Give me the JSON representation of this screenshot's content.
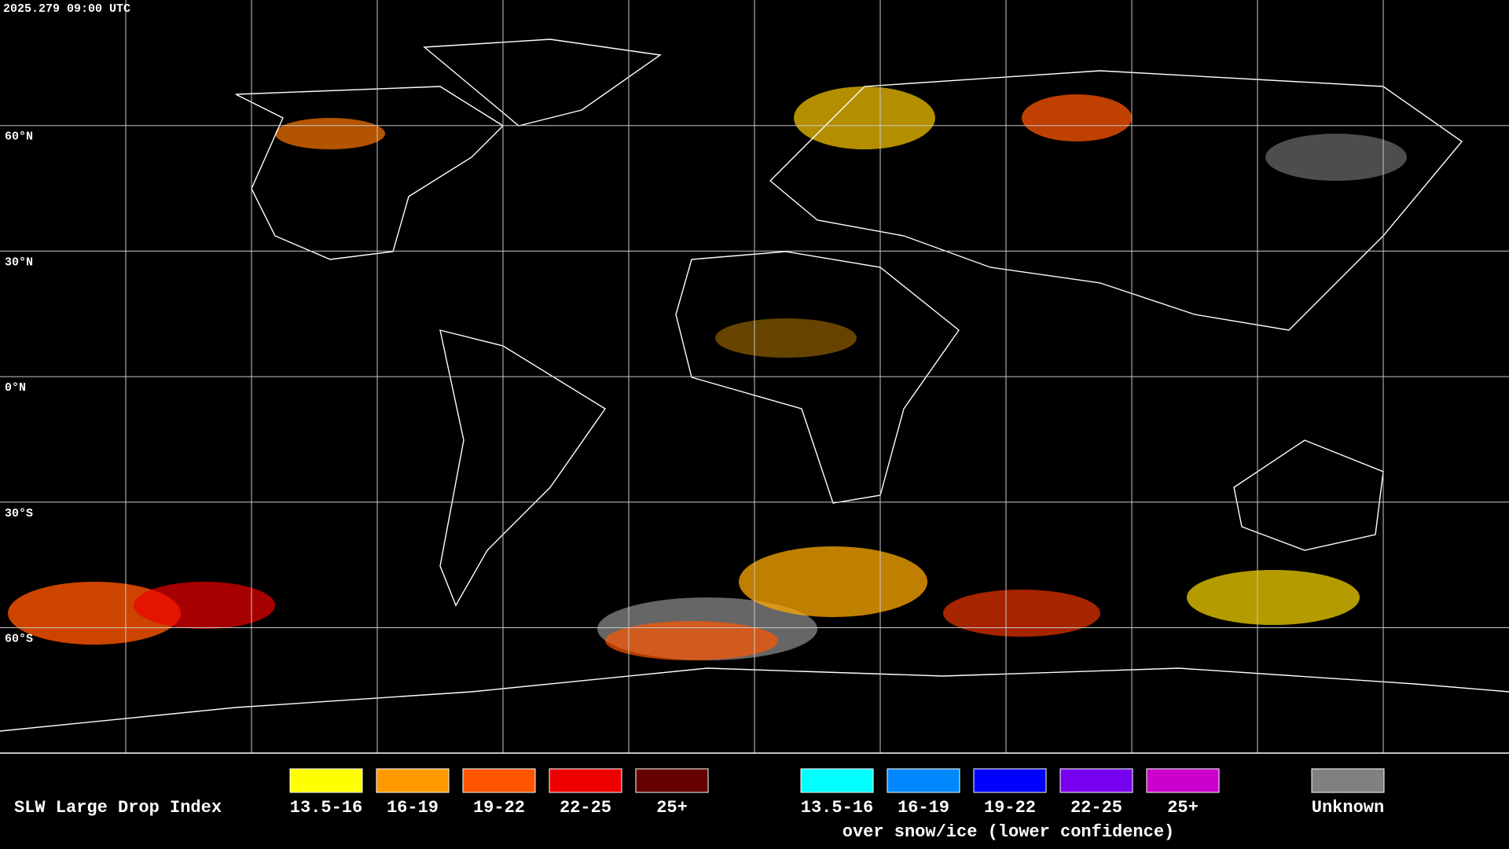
{
  "timestamp": "2025.279 09:00 UTC",
  "latitude_labels": [
    "60°N",
    "30°N",
    "0°N",
    "30°S",
    "60°S"
  ],
  "legend": {
    "title": "SLW Large Drop Index",
    "items": [
      {
        "label": "13.5-16",
        "color": "#ffff00"
      },
      {
        "label": "16-19",
        "color": "#ff9900"
      },
      {
        "label": "19-22",
        "color": "#ff5500"
      },
      {
        "label": "22-25",
        "color": "#ee0000"
      },
      {
        "label": "25+",
        "color": "#660000"
      }
    ],
    "snow_items": [
      {
        "label": "13.5-16",
        "color": "#00ffff"
      },
      {
        "label": "16-19",
        "color": "#0088ff"
      },
      {
        "label": "19-22",
        "color": "#0000ff"
      },
      {
        "label": "22-25",
        "color": "#7700ee"
      },
      {
        "label": "25+",
        "color": "#cc00cc"
      }
    ],
    "snow_caption": "over snow/ice (lower confidence)",
    "unknown": {
      "label": "Unknown",
      "color": "#808080"
    }
  }
}
